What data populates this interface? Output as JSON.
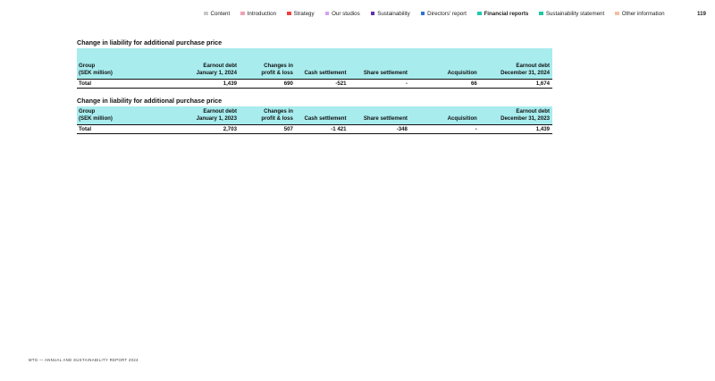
{
  "nav": {
    "items": [
      {
        "label": "Content",
        "color": "#c8c8c8",
        "active": false
      },
      {
        "label": "Introduction",
        "color": "#f0a0b4",
        "active": false
      },
      {
        "label": "Strategy",
        "color": "#ee4040",
        "active": false
      },
      {
        "label": "Our studios",
        "color": "#d4a0f0",
        "active": false
      },
      {
        "label": "Sustainability",
        "color": "#6030b0",
        "active": false
      },
      {
        "label": "Directors' report",
        "color": "#3070d0",
        "active": false
      },
      {
        "label": "Financial reports",
        "color": "#20c8b0",
        "active": true
      },
      {
        "label": "Sustainability statement",
        "color": "#20c8a0",
        "active": false
      },
      {
        "label": "Other information",
        "color": "#f0c0a0",
        "active": false
      }
    ],
    "page_number": "119"
  },
  "tables": [
    {
      "title": "Change in liability for additional purchase price",
      "headers": [
        [
          "Group",
          "(SEK million)"
        ],
        [
          "Earnout debt",
          "January 1, 2024"
        ],
        [
          "Changes in",
          "profit & loss"
        ],
        [
          "",
          "Cash settlement"
        ],
        [
          "",
          "Share settlement"
        ],
        [
          "",
          "Acquisition"
        ],
        [
          "Earnout debt",
          "December 31, 2024"
        ]
      ],
      "row": [
        "Total",
        "1,439",
        "690",
        "-521",
        "-",
        "66",
        "1,674"
      ]
    },
    {
      "title": "Change in liability for additional purchase price",
      "headers": [
        [
          "Group",
          "(SEK million)"
        ],
        [
          "Earnout debt",
          "January 1, 2023"
        ],
        [
          "Changes in",
          "profit & loss"
        ],
        [
          "",
          "Cash settlement"
        ],
        [
          "",
          "Share settlement"
        ],
        [
          "",
          "Acquisition"
        ],
        [
          "Earnout debt",
          "December 31, 2023"
        ]
      ],
      "row": [
        "Total",
        "2,703",
        "507",
        "-1 421",
        "-348",
        "-",
        "1,439"
      ]
    }
  ],
  "footer": "MTG — ANNUAL AND SUSTAINABILITY REPORT 2024"
}
